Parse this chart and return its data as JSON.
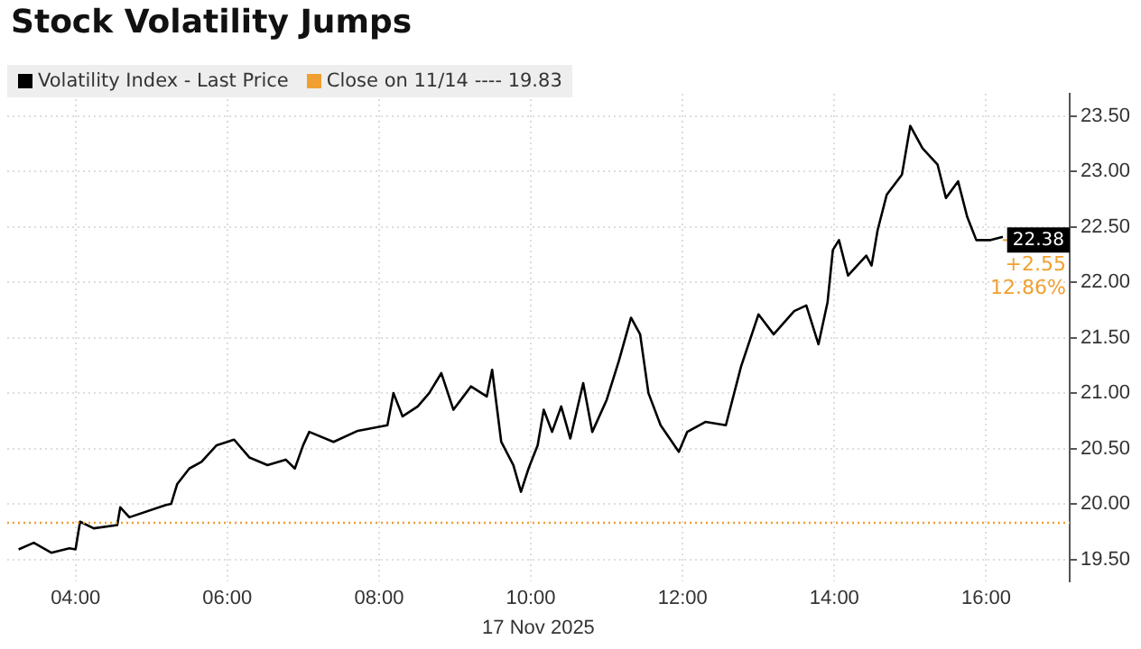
{
  "chart_data": {
    "type": "line",
    "title": "Stock Volatility Jumps",
    "xlabel": "17 Nov 2025",
    "x": [
      3.25,
      3.45,
      3.68,
      3.92,
      4.0,
      4.06,
      4.24,
      4.55,
      4.59,
      4.71,
      5.19,
      5.26,
      5.34,
      5.5,
      5.66,
      5.86,
      6.09,
      6.29,
      6.53,
      6.77,
      6.89,
      7.0,
      7.08,
      7.4,
      7.72,
      8.11,
      8.19,
      8.31,
      8.51,
      8.66,
      8.82,
      8.98,
      9.21,
      9.42,
      9.49,
      9.61,
      9.77,
      9.87,
      9.97,
      10.09,
      10.17,
      10.28,
      10.4,
      10.52,
      10.69,
      10.81,
      11.0,
      11.16,
      11.32,
      11.44,
      11.55,
      11.71,
      11.95,
      12.06,
      12.3,
      12.57,
      12.77,
      13.0,
      13.2,
      13.47,
      13.63,
      13.79,
      13.91,
      13.98,
      14.06,
      14.18,
      14.42,
      14.49,
      14.57,
      14.69,
      14.89,
      15.0,
      15.16,
      15.36,
      15.47,
      15.63,
      15.75,
      15.87,
      16.06,
      16.22
    ],
    "series": [
      {
        "name": "Volatility Index - Last Price",
        "color": "#000000",
        "values": [
          19.59,
          19.65,
          19.56,
          19.6,
          19.59,
          19.84,
          19.78,
          19.81,
          19.97,
          19.88,
          19.99,
          20.0,
          20.18,
          20.32,
          20.38,
          20.53,
          20.58,
          20.42,
          20.35,
          20.4,
          20.32,
          20.53,
          20.65,
          20.56,
          20.66,
          20.71,
          21.0,
          20.79,
          20.88,
          21.0,
          21.18,
          20.85,
          21.06,
          20.97,
          21.21,
          20.56,
          20.35,
          20.11,
          20.32,
          20.53,
          20.85,
          20.65,
          20.88,
          20.59,
          21.09,
          20.65,
          20.94,
          21.29,
          21.68,
          21.53,
          21.0,
          20.71,
          20.47,
          20.65,
          20.74,
          20.71,
          21.24,
          21.71,
          21.53,
          21.74,
          21.79,
          21.44,
          21.82,
          22.29,
          22.38,
          22.06,
          22.24,
          22.15,
          22.47,
          22.79,
          22.97,
          23.41,
          23.21,
          23.06,
          22.76,
          22.91,
          22.59,
          22.38,
          22.38,
          22.41
        ]
      }
    ],
    "xlim": [
      3.1,
      17.1
    ],
    "xticks": [
      {
        "value": 4,
        "label": "04:00"
      },
      {
        "value": 6,
        "label": "06:00"
      },
      {
        "value": 8,
        "label": "08:00"
      },
      {
        "value": 10,
        "label": "10:00"
      },
      {
        "value": 12,
        "label": "12:00"
      },
      {
        "value": 14,
        "label": "14:00"
      },
      {
        "value": 16,
        "label": "16:00"
      }
    ],
    "ylim": [
      19.3,
      23.7
    ],
    "yticks": [
      {
        "value": 19.5,
        "label": "19.50"
      },
      {
        "value": 20,
        "label": "20.00"
      },
      {
        "value": 20.5,
        "label": "20.50"
      },
      {
        "value": 21,
        "label": "21.00"
      },
      {
        "value": 21.5,
        "label": "21.50"
      },
      {
        "value": 22,
        "label": "22.00"
      },
      {
        "value": 22.5,
        "label": "22.50"
      },
      {
        "value": 23,
        "label": "23.00"
      },
      {
        "value": 23.5,
        "label": "23.50"
      }
    ],
    "ref_lines": [
      {
        "axis": "y",
        "value": 19.83,
        "label": "Close on 11/14 ---- 19.83",
        "color": "#f0a030",
        "line_style": "dotted"
      }
    ],
    "annotations": [
      {
        "text": "22.38",
        "x": 16.22,
        "y": 22.38
      },
      "+2.55",
      "12.86%"
    ],
    "grid": true,
    "legend": "top left",
    "marker": "none",
    "line_style": "solid"
  }
}
